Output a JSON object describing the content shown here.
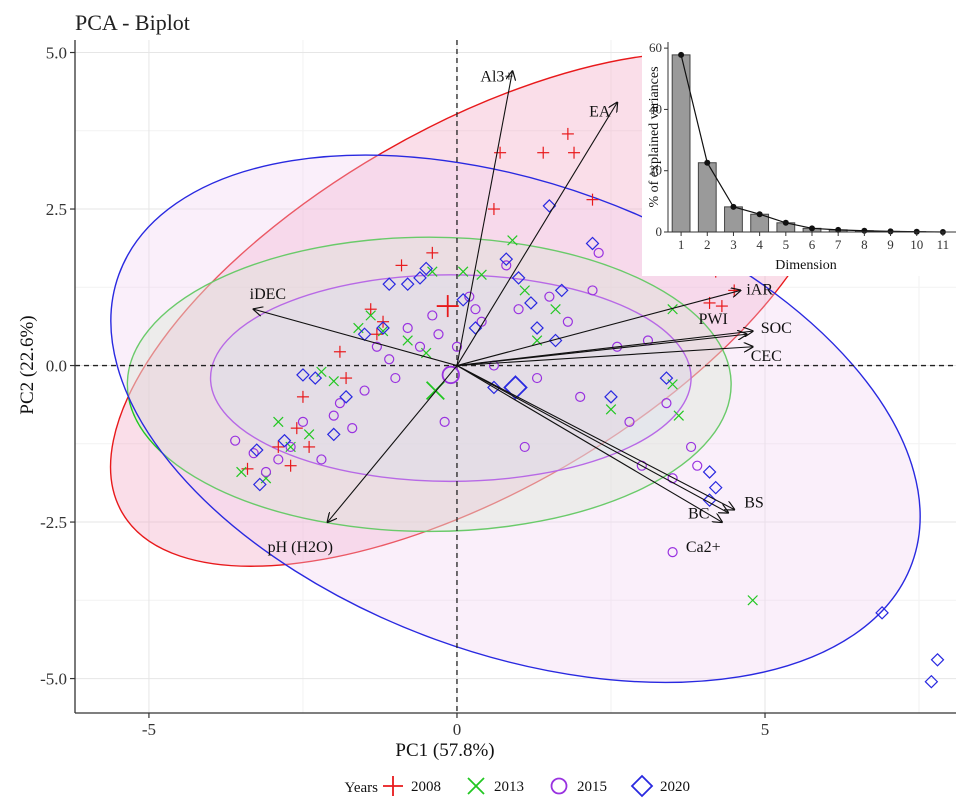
{
  "chart_data": [
    {
      "type": "scatter",
      "title": "PCA - Biplot",
      "xlabel": "PC1 (57.8%)",
      "ylabel": "PC2 (22.6%)",
      "xlim": [
        -6.2,
        8.1
      ],
      "ylim": [
        -5.55,
        5.2
      ],
      "x_ticks": [
        -5,
        0,
        5
      ],
      "y_ticks": [
        -5.0,
        -2.5,
        0.0,
        2.5,
        5.0
      ],
      "x_tick_labels": [
        "-5",
        "0",
        "5"
      ],
      "y_tick_labels": [
        "-5.0",
        "-2.5",
        "0.0",
        "2.5",
        "5.0"
      ],
      "grid": true,
      "legend": {
        "title": "Years",
        "position": "bottom",
        "entries": [
          {
            "label": "2008",
            "marker": "plus",
            "color": "#e8191b"
          },
          {
            "label": "2013",
            "marker": "cross",
            "color": "#22c722"
          },
          {
            "label": "2015",
            "marker": "circle",
            "color": "#9932e0"
          },
          {
            "label": "2020",
            "marker": "diamond",
            "color": "#2929e0"
          }
        ]
      },
      "series": [
        {
          "color": "#e8191b",
          "marker": "plus",
          "ellipse": {
            "cx": 0.28,
            "cy": 0.9,
            "a": 6.6,
            "b": 2.9,
            "angle_deg": 30,
            "fill": "#f2a0c0"
          },
          "mean": [
            -0.15,
            0.95
          ],
          "points": [
            [
              -3.4,
              -1.65
            ],
            [
              -2.9,
              -1.3
            ],
            [
              -2.7,
              -1.6
            ],
            [
              -2.6,
              -1.0
            ],
            [
              -2.4,
              -1.3
            ],
            [
              -2.5,
              -0.5
            ],
            [
              -1.9,
              0.22
            ],
            [
              -1.8,
              -0.2
            ],
            [
              -1.4,
              0.9
            ],
            [
              -1.3,
              0.5
            ],
            [
              -1.2,
              0.7
            ],
            [
              -0.9,
              1.6
            ],
            [
              -0.4,
              1.8
            ],
            [
              0.6,
              2.5
            ],
            [
              0.7,
              3.4
            ],
            [
              1.4,
              3.4
            ],
            [
              1.8,
              3.7
            ],
            [
              1.9,
              3.4
            ],
            [
              2.2,
              2.65
            ],
            [
              4.2,
              1.5
            ],
            [
              4.5,
              1.2
            ],
            [
              4.3,
              0.95
            ],
            [
              4.1,
              1.0
            ]
          ]
        },
        {
          "color": "#22c722",
          "marker": "cross",
          "ellipse": {
            "cx": -0.45,
            "cy": -0.3,
            "a": 4.9,
            "b": 2.35,
            "angle_deg": 0,
            "fill": "#c8f0c0"
          },
          "mean": [
            -0.35,
            -0.4
          ],
          "points": [
            [
              -3.5,
              -1.7
            ],
            [
              -3.1,
              -1.8
            ],
            [
              -2.9,
              -0.9
            ],
            [
              -2.7,
              -1.3
            ],
            [
              -2.4,
              -1.1
            ],
            [
              -2.2,
              -0.1
            ],
            [
              -2.0,
              -0.25
            ],
            [
              -1.6,
              0.6
            ],
            [
              -1.4,
              0.8
            ],
            [
              -1.2,
              0.55
            ],
            [
              -0.8,
              0.4
            ],
            [
              -0.5,
              0.2
            ],
            [
              -0.4,
              1.5
            ],
            [
              0.1,
              1.5
            ],
            [
              0.4,
              1.45
            ],
            [
              0.9,
              2.0
            ],
            [
              1.1,
              1.2
            ],
            [
              1.6,
              0.9
            ],
            [
              3.5,
              0.9
            ],
            [
              3.5,
              -0.3
            ],
            [
              3.6,
              -0.8
            ],
            [
              4.8,
              -3.75
            ],
            [
              2.5,
              -0.7
            ],
            [
              1.3,
              0.4
            ]
          ]
        },
        {
          "color": "#9932e0",
          "marker": "circle",
          "ellipse": {
            "cx": -0.1,
            "cy": -0.2,
            "a": 3.9,
            "b": 1.65,
            "angle_deg": 0,
            "fill": "#c8e6ee"
          },
          "mean": [
            -0.1,
            -0.15
          ],
          "points": [
            [
              -3.6,
              -1.2
            ],
            [
              -3.3,
              -1.4
            ],
            [
              -3.1,
              -1.7
            ],
            [
              -2.9,
              -1.5
            ],
            [
              -2.7,
              -1.3
            ],
            [
              -2.5,
              -0.9
            ],
            [
              -2.2,
              -1.5
            ],
            [
              -2.0,
              -0.8
            ],
            [
              -1.9,
              -0.6
            ],
            [
              -1.7,
              -1.0
            ],
            [
              -1.5,
              -0.4
            ],
            [
              -1.3,
              0.3
            ],
            [
              -1.1,
              0.1
            ],
            [
              -1.0,
              -0.2
            ],
            [
              -0.8,
              0.6
            ],
            [
              -0.6,
              0.3
            ],
            [
              -0.4,
              0.8
            ],
            [
              -0.3,
              0.5
            ],
            [
              0.0,
              0.3
            ],
            [
              0.2,
              1.1
            ],
            [
              0.4,
              0.7
            ],
            [
              0.6,
              0.0
            ],
            [
              0.8,
              1.6
            ],
            [
              1.0,
              0.9
            ],
            [
              1.3,
              -0.2
            ],
            [
              1.5,
              1.1
            ],
            [
              1.8,
              0.7
            ],
            [
              2.0,
              -0.5
            ],
            [
              2.3,
              1.8
            ],
            [
              2.6,
              0.3
            ],
            [
              2.8,
              -0.9
            ],
            [
              3.1,
              0.4
            ],
            [
              3.0,
              -1.6
            ],
            [
              3.4,
              -0.6
            ],
            [
              3.5,
              -1.8
            ],
            [
              3.8,
              -1.3
            ],
            [
              3.9,
              -1.6
            ],
            [
              3.5,
              -2.98
            ],
            [
              1.1,
              -1.3
            ],
            [
              -0.2,
              -0.9
            ],
            [
              0.3,
              0.9
            ],
            [
              2.2,
              1.2
            ]
          ]
        },
        {
          "color": "#2929e0",
          "marker": "diamond",
          "ellipse": {
            "cx": 0.95,
            "cy": -0.85,
            "a": 6.85,
            "b": 3.75,
            "angle_deg": -20,
            "fill": "#f0d0f2"
          },
          "mean": [
            0.95,
            -0.35
          ],
          "points": [
            [
              -3.2,
              -1.9
            ],
            [
              -3.25,
              -1.35
            ],
            [
              -2.8,
              -1.2
            ],
            [
              -2.5,
              -0.15
            ],
            [
              -2.3,
              -0.2
            ],
            [
              -2.0,
              -1.1
            ],
            [
              -1.8,
              -0.5
            ],
            [
              -1.5,
              0.5
            ],
            [
              -1.2,
              0.6
            ],
            [
              -1.1,
              1.3
            ],
            [
              -0.8,
              1.3
            ],
            [
              -0.6,
              1.4
            ],
            [
              -0.5,
              1.55
            ],
            [
              0.1,
              1.05
            ],
            [
              0.3,
              0.6
            ],
            [
              0.8,
              1.7
            ],
            [
              1.0,
              1.4
            ],
            [
              1.2,
              1.0
            ],
            [
              1.3,
              0.6
            ],
            [
              1.5,
              2.55
            ],
            [
              1.6,
              0.4
            ],
            [
              1.7,
              1.2
            ],
            [
              2.2,
              1.95
            ],
            [
              4.1,
              -1.7
            ],
            [
              4.2,
              -1.95
            ],
            [
              4.1,
              -2.15
            ],
            [
              6.9,
              -3.95
            ],
            [
              7.7,
              -5.05
            ],
            [
              7.8,
              -4.7
            ],
            [
              0.6,
              -0.35
            ],
            [
              2.5,
              -0.5
            ],
            [
              3.4,
              -0.2
            ]
          ]
        }
      ],
      "loadings": [
        {
          "name": "Al3+",
          "x": 0.9,
          "y": 4.7
        },
        {
          "name": "EA",
          "x": 2.6,
          "y": 4.2
        },
        {
          "name": "iAR",
          "x": 4.6,
          "y": 1.2
        },
        {
          "name": "PWI",
          "x": 4.7,
          "y": 0.5
        },
        {
          "name": "SOC",
          "x": 4.8,
          "y": 0.55
        },
        {
          "name": "CEC",
          "x": 4.8,
          "y": 0.3
        },
        {
          "name": "iDEC",
          "x": -3.3,
          "y": 0.9
        },
        {
          "name": "pH (H2O)",
          "x": -2.1,
          "y": -2.5
        },
        {
          "name": "BS",
          "x": 4.5,
          "y": -2.3
        },
        {
          "name": "BC",
          "x": 4.4,
          "y": -2.35
        },
        {
          "name": "Ca2+",
          "x": 4.3,
          "y": -2.5
        }
      ]
    },
    {
      "type": "bar",
      "xlabel": "Dimension",
      "ylabel": "% of explained variances",
      "categories": [
        "1",
        "2",
        "3",
        "4",
        "5",
        "6",
        "7",
        "8",
        "9",
        "10",
        "11"
      ],
      "values": [
        57.8,
        22.6,
        8.2,
        5.8,
        3.0,
        1.2,
        0.7,
        0.4,
        0.2,
        0.1,
        0.0
      ],
      "y_ticks": [
        0,
        20,
        40,
        60
      ],
      "y_tick_labels": [
        "0",
        "20",
        "40",
        "60"
      ],
      "ylim": [
        0,
        62
      ],
      "line": true
    }
  ]
}
